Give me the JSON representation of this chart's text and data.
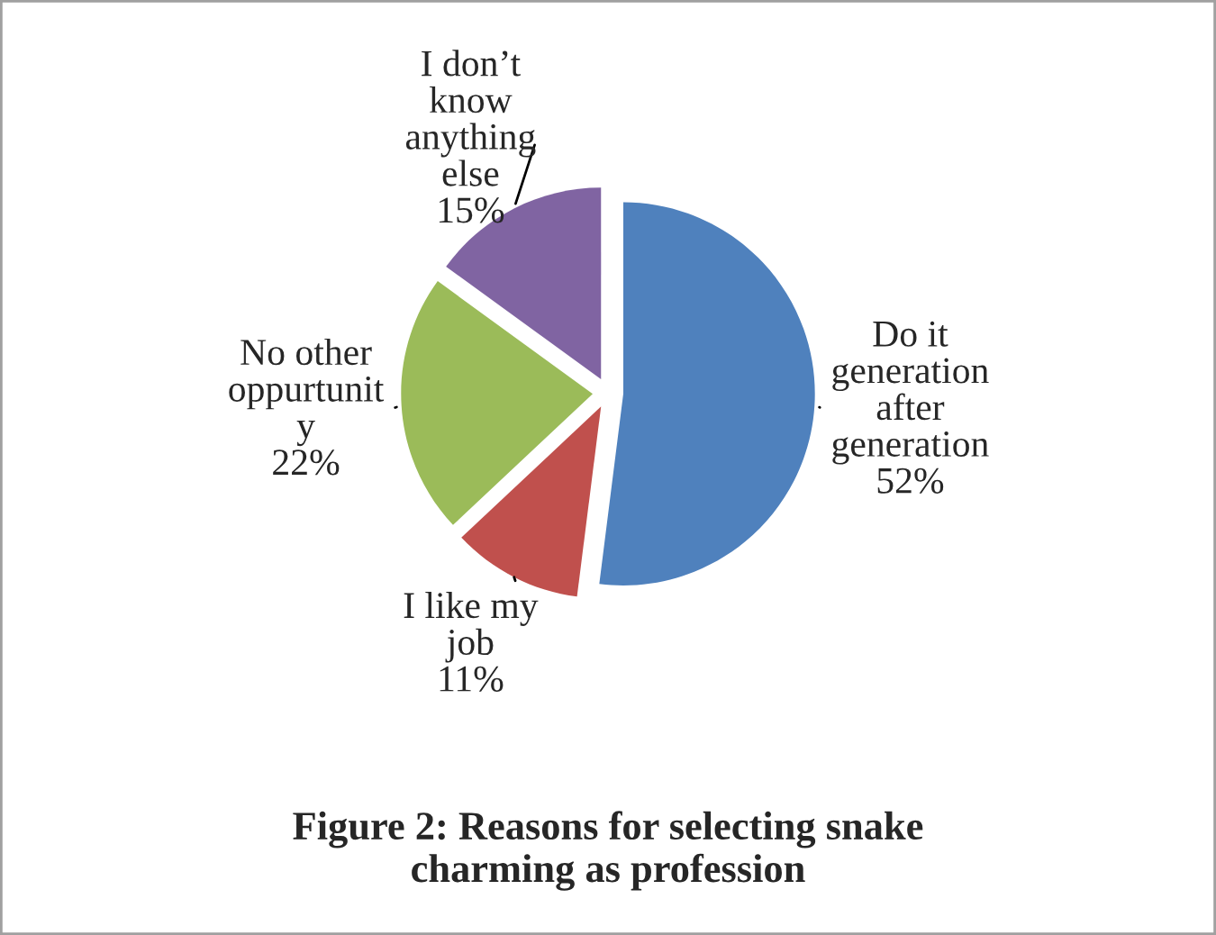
{
  "chart_data": {
    "type": "pie",
    "title": "Figure 2: Reasons for selecting snake\ncharming as profession",
    "categories": [
      "Do it\ngeneration\nafter\ngeneration",
      "I like my\njob",
      "No other\noppurtunit\ny",
      "I don’t\nknow\nanything\nelse"
    ],
    "values": [
      52,
      11,
      22,
      15
    ],
    "value_labels": [
      "52%",
      "11%",
      "22%",
      "15%"
    ],
    "colors": [
      "#4f81bd",
      "#c0504d",
      "#9bbb59",
      "#8064a2"
    ]
  }
}
